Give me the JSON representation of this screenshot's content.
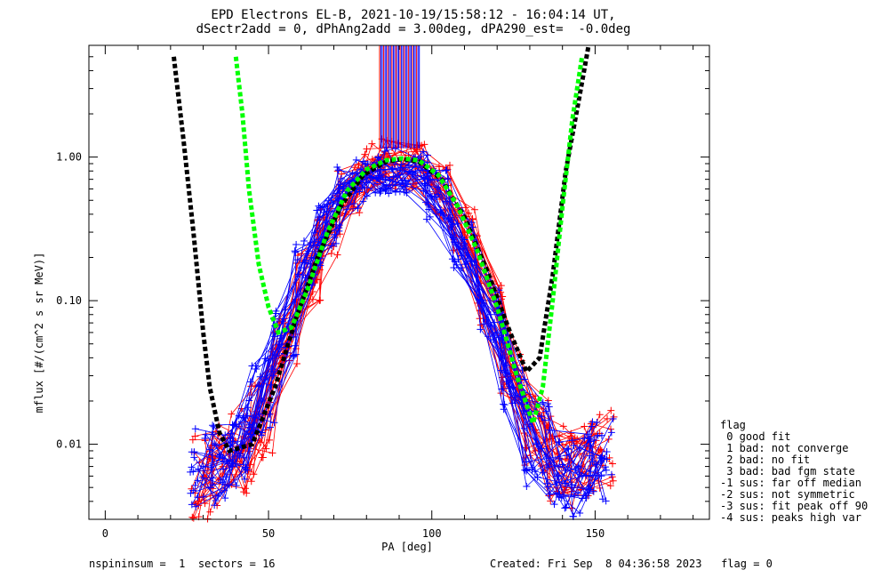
{
  "title": {
    "line1": "EPD Electrons EL-B, 2021-10-19/15:58:12 - 16:04:14 UT,",
    "line2": "dSectr2add = 0, dPhAng2add = 3.00deg, dPA290_est=  -0.0deg"
  },
  "footer": {
    "left": "nspininsum =  1  sectors = 16",
    "right": "Created: Fri Sep  8 04:36:58 2023   flag = 0"
  },
  "legend": {
    "title": "flag",
    "items": [
      " 0 good fit",
      " 1 bad: not converge",
      " 2 bad: no fit",
      " 3 bad: bad fgm state",
      "-1 sus: far off median",
      "-2 sus: not symmetric",
      "-3 sus: fit peak off 90",
      "-4 sus: peaks high var"
    ]
  },
  "colors": {
    "red": "#ff0000",
    "blue": "#0000ff",
    "black_fit": "#000000",
    "green_fit": "#00ff00"
  },
  "chart_data": {
    "type": "line",
    "xlabel": "PA [deg]",
    "ylabel": "mflux [#/(cm^2 s sr MeV)]",
    "xlim": [
      -5,
      185
    ],
    "ylim": [
      0.003,
      6
    ],
    "yscale": "log",
    "xticks": [
      0,
      50,
      100,
      150
    ],
    "yticks": [
      0.01,
      0.1,
      1.0
    ],
    "ytick_labels": [
      "0.01",
      "0.10",
      "1.00"
    ],
    "grid": false,
    "series": [
      {
        "color": "red",
        "style": "thin-line-plus-markers",
        "x": [
          30,
          36,
          42,
          48,
          55,
          62,
          68,
          75,
          82,
          88,
          95,
          102,
          110,
          118,
          125,
          132,
          139,
          146,
          152
        ],
        "y": [
          0.006,
          0.007,
          0.009,
          0.015,
          0.05,
          0.15,
          0.3,
          0.6,
          0.85,
          0.9,
          0.85,
          0.6,
          0.3,
          0.1,
          0.03,
          0.012,
          0.008,
          0.007,
          0.009
        ]
      },
      {
        "color": "blue",
        "style": "thin-line-plus-markers",
        "x": [
          30,
          36,
          42,
          48,
          55,
          62,
          68,
          75,
          82,
          88,
          95,
          102,
          110,
          118,
          125,
          132,
          139,
          146,
          152
        ],
        "y": [
          0.007,
          0.008,
          0.01,
          0.02,
          0.06,
          0.18,
          0.35,
          0.65,
          0.8,
          0.82,
          0.78,
          0.55,
          0.25,
          0.08,
          0.025,
          0.01,
          0.007,
          0.006,
          0.008
        ]
      },
      {
        "color": "black_fit",
        "style": "thick-dashed",
        "x": [
          21,
          24,
          27,
          30,
          32,
          35,
          38,
          45,
          52,
          58,
          65,
          72,
          79,
          86,
          91,
          96,
          103,
          110,
          117,
          124,
          129,
          133,
          137,
          141,
          145,
          148
        ],
        "y": [
          5.0,
          1.3,
          0.3,
          0.06,
          0.025,
          0.012,
          0.009,
          0.01,
          0.025,
          0.07,
          0.2,
          0.45,
          0.75,
          0.93,
          0.97,
          0.93,
          0.7,
          0.38,
          0.16,
          0.06,
          0.032,
          0.04,
          0.15,
          0.8,
          2.5,
          6.0
        ]
      },
      {
        "color": "green_fit",
        "style": "thick-dashed",
        "x": [
          40,
          42,
          44,
          47,
          50,
          53,
          57,
          62,
          68,
          74,
          80,
          86,
          91,
          96,
          102,
          108,
          114,
          120,
          126,
          131,
          134,
          137,
          140,
          143,
          146
        ],
        "y": [
          5.0,
          2.0,
          0.6,
          0.18,
          0.09,
          0.06,
          0.065,
          0.12,
          0.3,
          0.58,
          0.82,
          0.95,
          0.98,
          0.95,
          0.75,
          0.45,
          0.22,
          0.09,
          0.03,
          0.014,
          0.025,
          0.1,
          0.45,
          1.8,
          5.0
        ]
      }
    ]
  }
}
